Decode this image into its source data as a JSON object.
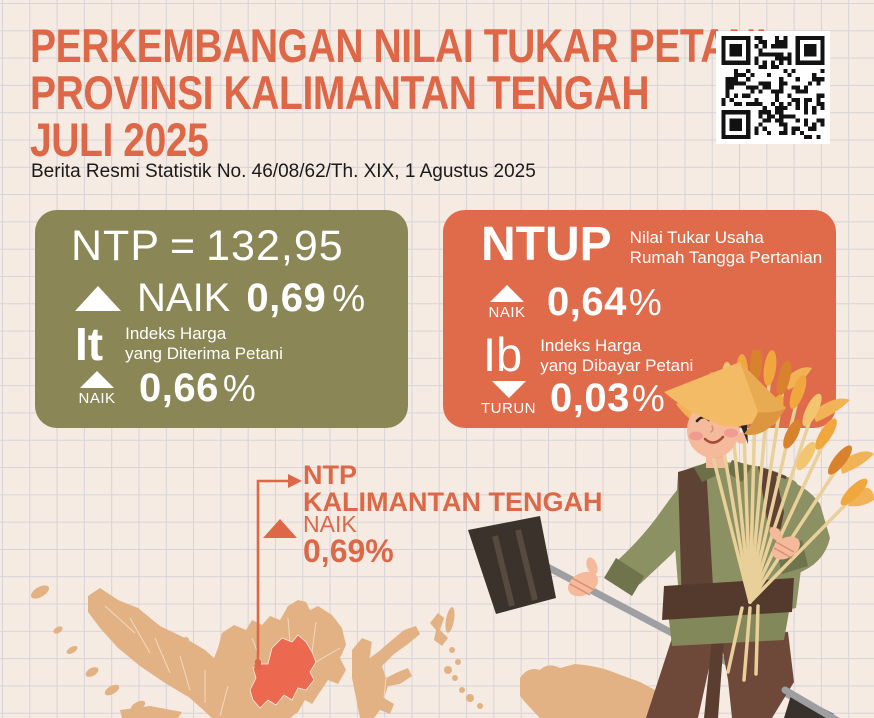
{
  "header": {
    "title_line1": "PERKEMBANGAN NILAI TUKAR PETANI",
    "title_line2": "PROVINSI KALIMANTAN TENGAH",
    "title_line3": "JULI 2025",
    "subtitle": "Berita Resmi Statistik No. 46/08/62/Th. XIX, 1 Agustus 2025"
  },
  "ntp_card": {
    "label": "NTP",
    "equals_sign": "=",
    "value": "132,95",
    "direction": "NAIK",
    "change": "0,69",
    "percent_sign": "%",
    "it": {
      "label": "It",
      "desc_line1": "Indeks Harga",
      "desc_line2": "yang Diterima Petani",
      "direction": "NAIK",
      "change": "0,66",
      "percent_sign": "%"
    }
  },
  "ntup_card": {
    "label": "NTUP",
    "desc_line1": "Nilai Tukar Usaha",
    "desc_line2": "Rumah Tangga Pertanian",
    "direction": "NAIK",
    "change": "0,64",
    "percent_sign": "%",
    "ib": {
      "label": "Ib",
      "desc_line1": "Indeks Harga",
      "desc_line2": "yang Dibayar Petani",
      "direction": "TURUN",
      "change": "0,03",
      "percent_sign": "%"
    }
  },
  "map_callout": {
    "label_line1": "NTP",
    "label_line2": "KALIMANTAN TENGAH",
    "direction": "NAIK",
    "change": "0,69%"
  },
  "icons": {
    "up_triangle": "arrow-up-icon",
    "down_triangle": "arrow-down-icon",
    "qr": "qr-code"
  },
  "colors": {
    "accent_orange": "#dd6747",
    "card_green": "#8b8656",
    "card_orange": "#e06b4b",
    "map_tan": "#e2b285",
    "map_highlight": "#ec6950",
    "background": "#f6ebe2",
    "grid_line": "#d6d3da",
    "text_black": "#1a1a1a",
    "white": "#ffffff"
  }
}
